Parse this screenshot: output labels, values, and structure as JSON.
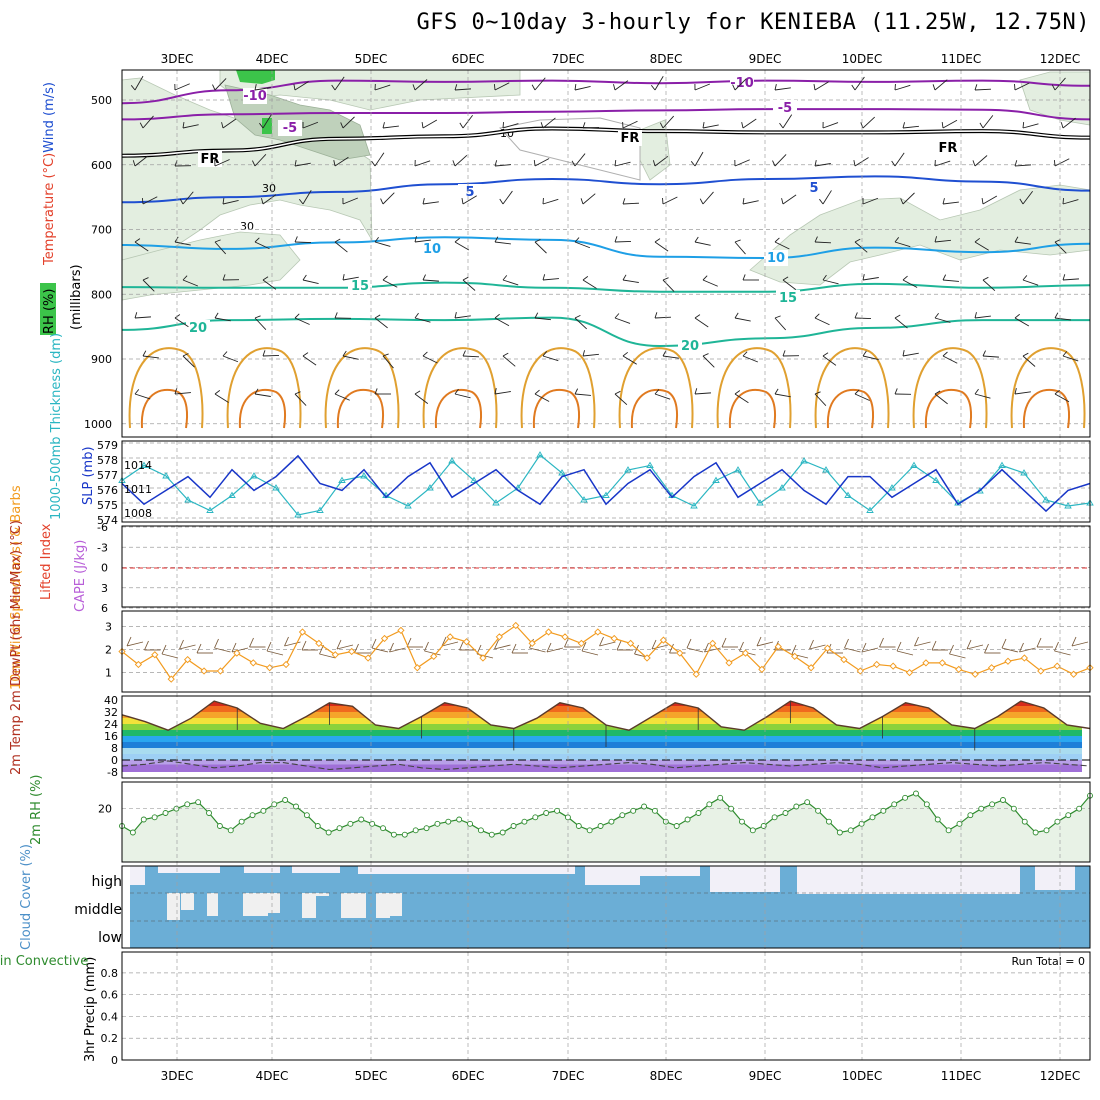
{
  "title": "GFS 0~10day 3-hourly for KENIEBA (11.25W, 12.75N)",
  "colors": {
    "purple": "#8a1fa8",
    "freezing": "#000000",
    "blue": "#1f4fd1",
    "cyan": "#1e9fe6",
    "teal": "#1fb597",
    "orange": "#e0a030",
    "slp": "#1836c8",
    "thickness": "#2bb6c2",
    "wind": "#f29b1f",
    "cloud": "#6baed6",
    "rh_line": "#2e8b2e",
    "rh_fill": "#e8f2e6",
    "grid": "#a0a0a0"
  },
  "chart_data": [
    {
      "type": "line",
      "panel": "upper-air",
      "ylabel": "Temperature (°C) Wind (m/s)",
      "ylabel_unit": "(millibars)",
      "legend": "RH (%)",
      "x": [
        "3DEC",
        "4DEC",
        "5DEC",
        "6DEC",
        "7DEC",
        "8DEC",
        "9DEC",
        "10DEC",
        "11DEC",
        "12DEC"
      ],
      "yticks": [
        "500",
        "600",
        "700",
        "800",
        "900",
        "1000"
      ],
      "ylim": [
        1000,
        450
      ],
      "contours": [
        {
          "label": "-10",
          "levels": [
            505,
            485,
            470,
            472,
            470,
            474,
            470,
            472,
            470,
            478
          ]
        },
        {
          "label": "-5",
          "levels": [
            530,
            522,
            520,
            520,
            518,
            516,
            514,
            514,
            515,
            530
          ]
        },
        {
          "label": "FR",
          "levels": [
            586,
            578,
            560,
            556,
            544,
            548,
            550,
            550,
            548,
            558
          ]
        },
        {
          "label": "5",
          "levels": [
            658,
            650,
            642,
            630,
            622,
            630,
            622,
            618,
            626,
            640
          ]
        },
        {
          "label": "10",
          "levels": [
            724,
            730,
            720,
            712,
            716,
            742,
            744,
            728,
            735,
            722
          ]
        },
        {
          "label": "15",
          "levels": [
            789,
            790,
            790,
            782,
            790,
            796,
            796,
            784,
            790,
            786
          ]
        },
        {
          "label": "20",
          "levels": [
            855,
            840,
            838,
            840,
            836,
            880,
            868,
            852,
            840,
            840
          ]
        }
      ],
      "contour_labels": {
        "tm10": "-10",
        "tm5": "-5",
        "fr": "FR",
        "t5": "5",
        "t10": "10",
        "t15": "15",
        "t20": "20",
        "rh30": "30",
        "rh10": "10"
      },
      "rh_shaded_levels": [
        "30",
        "10"
      ]
    },
    {
      "type": "line",
      "panel": "pressure",
      "ylabel_left": "1000-500mb Thickness (dm)",
      "ylabel_right": "SLP (mb)",
      "yticks_left": [
        "579",
        "578",
        "577",
        "576",
        "575",
        "574"
      ],
      "yticks_right": [
        "1014",
        "1011",
        "1008"
      ],
      "series": [
        {
          "name": "SLP (mb)",
          "values": [
            1011,
            1008,
            1010,
            1012,
            1009,
            1013,
            1010,
            1012,
            1015,
            1011,
            1010,
            1013,
            1009,
            1012,
            1014,
            1009,
            1011,
            1013,
            1010,
            1008,
            1012,
            1013,
            1008,
            1011,
            1013,
            1009,
            1012,
            1014,
            1009,
            1011,
            1013,
            1010,
            1008,
            1012,
            1012,
            1009,
            1011,
            1013,
            1008,
            1010,
            1013,
            1010,
            1007,
            1010,
            1011
          ]
        },
        {
          "name": "Thickness (dm)",
          "values": [
            576.5,
            577.5,
            576.8,
            575.2,
            574.5,
            575.5,
            576.8,
            576.0,
            574.2,
            574.5,
            576.5,
            576.8,
            575.5,
            574.8,
            576.0,
            577.8,
            576.5,
            575.0,
            576.0,
            578.2,
            577.0,
            575.2,
            575.5,
            577.2,
            577.5,
            575.5,
            574.8,
            576.5,
            577.2,
            575.0,
            576.0,
            577.8,
            577.2,
            575.5,
            574.5,
            576.0,
            577.5,
            576.5,
            575.0,
            575.8,
            577.5,
            577.0,
            575.2,
            574.8,
            575.0
          ]
        }
      ]
    },
    {
      "type": "line",
      "panel": "instability",
      "ylabel_left": "Lifted Index",
      "ylabel_right": "CAPE (J/kg)",
      "yticks": [
        "-6",
        "-3",
        "0",
        "3",
        "6"
      ],
      "zero_line": "0"
    },
    {
      "type": "line",
      "panel": "wind10m",
      "ylabel": "10m Wind Speed (m/s) & Barbs",
      "yticks": [
        "1",
        "2",
        "3"
      ],
      "series": [
        {
          "name": "10m Wind Speed",
          "values": [
            2.0,
            1.2,
            1.8,
            0.3,
            1.5,
            0.8,
            0.8,
            1.9,
            1.3,
            1.0,
            1.2,
            3.2,
            2.5,
            1.8,
            2.0,
            1.6,
            2.8,
            3.3,
            1.0,
            1.7,
            2.9,
            2.6,
            1.6,
            2.9,
            3.6,
            2.5,
            3.2,
            2.9,
            2.5,
            3.2,
            2.8,
            2.5,
            1.6,
            2.7,
            1.9,
            0.6,
            2.5,
            1.3,
            1.9,
            0.9,
            2.3,
            1.7,
            1.0,
            2.2,
            1.5,
            0.8,
            1.2,
            1.1,
            0.7,
            1.3,
            1.3,
            0.9,
            0.6,
            1.0,
            1.4,
            1.6,
            0.8,
            1.1,
            0.6,
            1.0
          ]
        }
      ]
    },
    {
      "type": "area",
      "panel": "temperature",
      "ylabel": "2m Temp 2m DewPt (6hr Min/Max) (°C)",
      "yticks": [
        "-8",
        "0",
        "8",
        "16",
        "24",
        "32",
        "40"
      ],
      "series": [
        {
          "name": "2m Temp",
          "values": [
            29,
            25,
            20,
            27,
            37,
            33,
            24,
            21,
            28,
            36,
            34,
            23,
            21,
            28,
            36,
            33,
            23,
            21,
            27,
            36,
            33,
            23,
            20,
            28,
            36,
            33,
            22,
            20,
            28,
            37,
            33,
            23,
            21,
            28,
            36,
            33,
            23,
            21,
            28,
            37,
            33,
            23,
            21
          ]
        },
        {
          "name": "2m DewPt",
          "values": [
            -1,
            0,
            2,
            0,
            -2,
            -1,
            1,
            1,
            -1,
            -3,
            -2,
            -1,
            0,
            -2,
            -3,
            -2,
            -1,
            0,
            -1,
            -2,
            -1,
            0,
            1,
            0,
            -2,
            -1,
            0,
            1,
            0,
            -1,
            0,
            1,
            0,
            -2,
            -1,
            0,
            1,
            0,
            -1,
            0,
            1,
            0,
            -1
          ]
        }
      ]
    },
    {
      "type": "area",
      "panel": "rh2m",
      "ylabel": "2m RH (%)",
      "yticks": [
        "20"
      ],
      "series": [
        {
          "name": "2m RH",
          "values": [
            12,
            9,
            15,
            16,
            18,
            20,
            22,
            23,
            18,
            12,
            10,
            14,
            17,
            19,
            22,
            24,
            21,
            17,
            12,
            9,
            11,
            13,
            15,
            13,
            11,
            8,
            8,
            10,
            11,
            13,
            14,
            15,
            13,
            10,
            8,
            9,
            12,
            14,
            16,
            18,
            19,
            16,
            12,
            10,
            12,
            14,
            17,
            19,
            21,
            19,
            14,
            12,
            15,
            18,
            22,
            25,
            20,
            14,
            10,
            12,
            16,
            18,
            21,
            23,
            19,
            14,
            9,
            10,
            13,
            16,
            19,
            22,
            25,
            27,
            22,
            15,
            10,
            13,
            17,
            20,
            22,
            24,
            20,
            14,
            9,
            10,
            14,
            17,
            20,
            26
          ]
        }
      ]
    },
    {
      "type": "area",
      "panel": "cloud",
      "ylabel": "Cloud Cover (%)",
      "categories": [
        "high",
        "middle",
        "low"
      ]
    },
    {
      "type": "bar",
      "panel": "precip",
      "ylabel_left": "Total / Rain Convective",
      "ylabel": "3hr Precip (mm)",
      "yticks": [
        "0",
        "0.2",
        "0.4",
        "0.6",
        "0.8"
      ],
      "ylim": [
        0,
        0.9
      ],
      "annotation": "Run Total = 0"
    }
  ]
}
